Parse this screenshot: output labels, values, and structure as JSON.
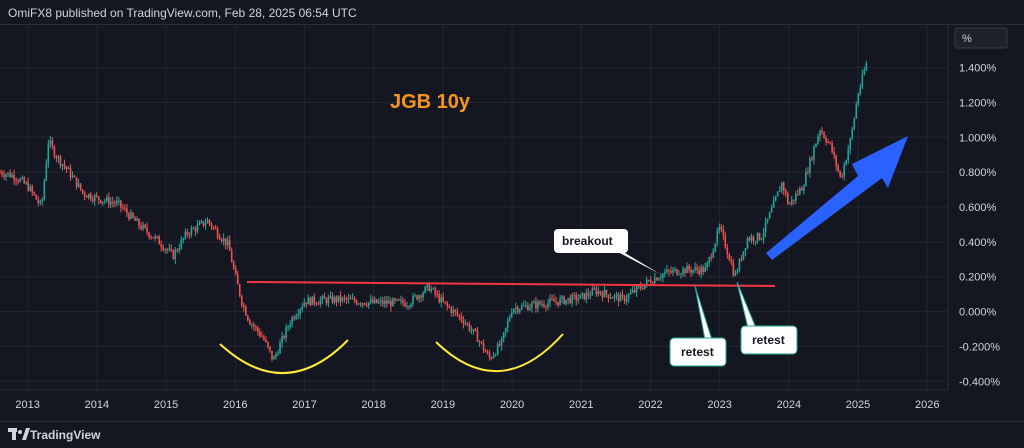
{
  "header": {
    "published_text": "OmiFX8 published on TradingView.com, Feb 28, 2025 06:54 UTC"
  },
  "footer": {
    "brand": "TradingView"
  },
  "chart_data": {
    "type": "candlestick",
    "title": "JGB 10y",
    "unit_label": "%",
    "xlim": [
      2012.6,
      2026.3
    ],
    "ylim": [
      -0.45,
      1.65
    ],
    "x_ticks": [
      "2013",
      "2014",
      "2015",
      "2016",
      "2017",
      "2018",
      "2019",
      "2020",
      "2021",
      "2022",
      "2023",
      "2024",
      "2025",
      "2026"
    ],
    "y_ticks": [
      "1.400%",
      "1.200%",
      "1.000%",
      "0.800%",
      "0.600%",
      "0.400%",
      "0.200%",
      "0.000%",
      "-0.200%",
      "-0.400%"
    ],
    "series": [
      {
        "x": [
          2012.6,
          2012.8,
          2013.0,
          2013.2,
          2013.3,
          2013.4,
          2013.6,
          2013.8,
          2014.0,
          2014.3,
          2014.6,
          2014.9,
          2015.1,
          2015.3,
          2015.6,
          2015.9,
          2016.0,
          2016.1,
          2016.2,
          2016.4,
          2016.55,
          2016.8,
          2017.0,
          2017.5,
          2018.0,
          2018.5,
          2018.8,
          2019.0,
          2019.3,
          2019.5,
          2019.67,
          2019.85,
          2020.0,
          2020.2,
          2020.5,
          2021.0,
          2021.2,
          2021.6,
          2022.0,
          2022.2,
          2022.5,
          2022.8,
          2022.95,
          2023.0,
          2023.15,
          2023.22,
          2023.4,
          2023.6,
          2023.75,
          2023.9,
          2024.0,
          2024.2,
          2024.45,
          2024.6,
          2024.75,
          2024.9,
          2025.0,
          2025.12
        ],
        "values": [
          0.8,
          0.78,
          0.72,
          0.6,
          0.98,
          0.9,
          0.8,
          0.68,
          0.65,
          0.62,
          0.5,
          0.4,
          0.32,
          0.45,
          0.52,
          0.38,
          0.2,
          0.05,
          -0.05,
          -0.15,
          -0.28,
          -0.05,
          0.06,
          0.07,
          0.05,
          0.05,
          0.14,
          0.05,
          -0.05,
          -0.15,
          -0.27,
          -0.18,
          0.02,
          0.03,
          0.05,
          0.08,
          0.12,
          0.07,
          0.18,
          0.22,
          0.24,
          0.24,
          0.42,
          0.48,
          0.3,
          0.2,
          0.42,
          0.43,
          0.58,
          0.74,
          0.61,
          0.72,
          1.05,
          0.95,
          0.76,
          1.0,
          1.25,
          1.42
        ]
      }
    ],
    "annotations": [
      "breakout",
      "retest",
      "retest"
    ],
    "grid": true
  },
  "colors": {
    "background": "#141722",
    "grid": "#232632",
    "up": "#26a69a",
    "down": "#ef5350",
    "title": "#f7941d",
    "resistance": "#f23645",
    "arc": "#ffeb3b",
    "arrow": "#2962ff"
  }
}
